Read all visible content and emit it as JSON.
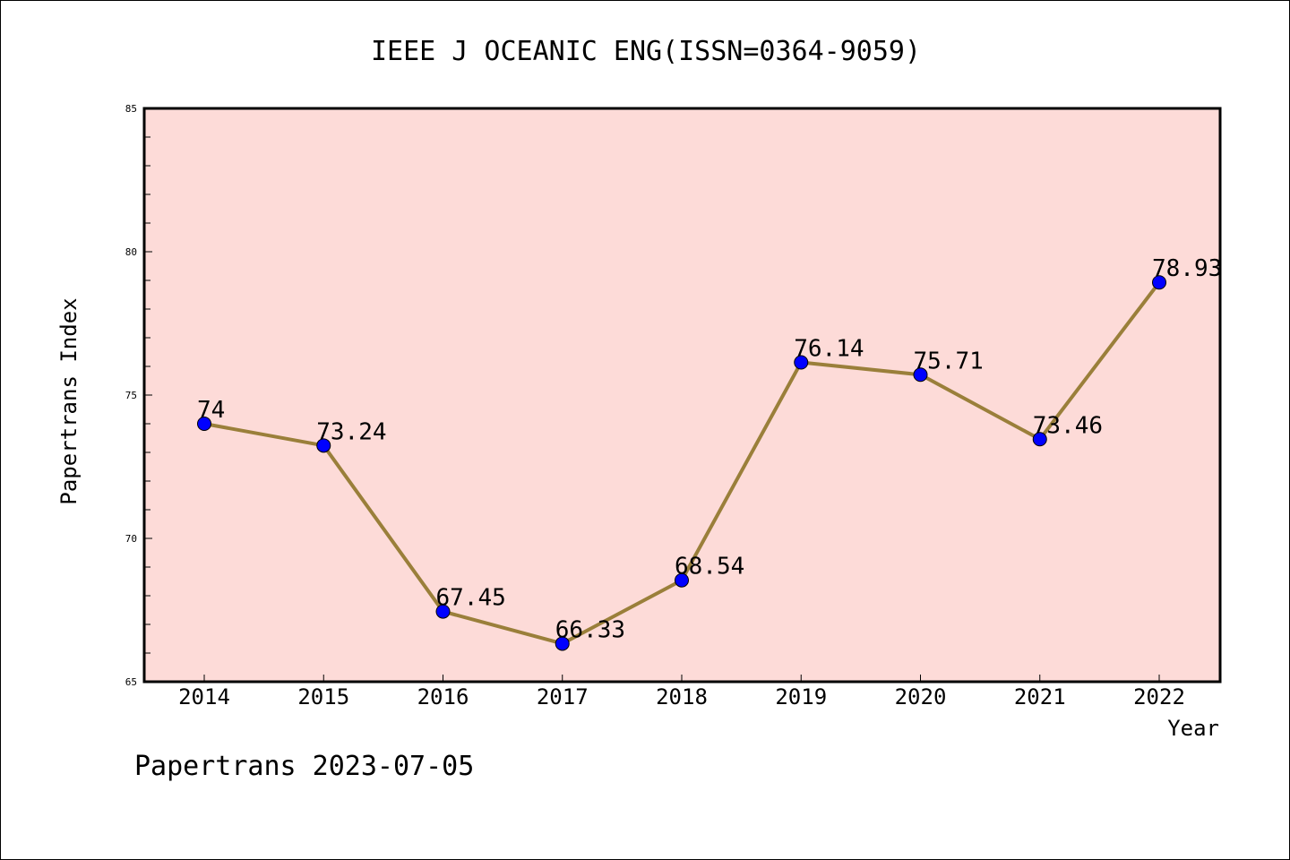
{
  "chart_data": {
    "type": "line",
    "title": "IEEE J OCEANIC ENG(ISSN=0364-9059)",
    "xlabel": "Year",
    "ylabel": "Papertrans Index",
    "categories": [
      "2014",
      "2015",
      "2016",
      "2017",
      "2018",
      "2019",
      "2020",
      "2021",
      "2022"
    ],
    "series": [
      {
        "values": [
          74,
          73.24,
          67.45,
          66.33,
          68.54,
          76.14,
          75.71,
          73.46,
          78.93
        ],
        "labels": [
          "74",
          "73.24",
          "67.45",
          "66.33",
          "68.54",
          "76.14",
          "75.71",
          "73.46",
          "78.93"
        ]
      }
    ],
    "ylim": [
      65,
      85
    ],
    "yticks": [
      "65",
      "70",
      "75",
      "80",
      "85"
    ],
    "grid": false,
    "colors": {
      "plot_background": "#fddbd8",
      "line": "#9a7f3a",
      "marker": "#0000ff"
    }
  },
  "footer": "Papertrans 2023-07-05"
}
